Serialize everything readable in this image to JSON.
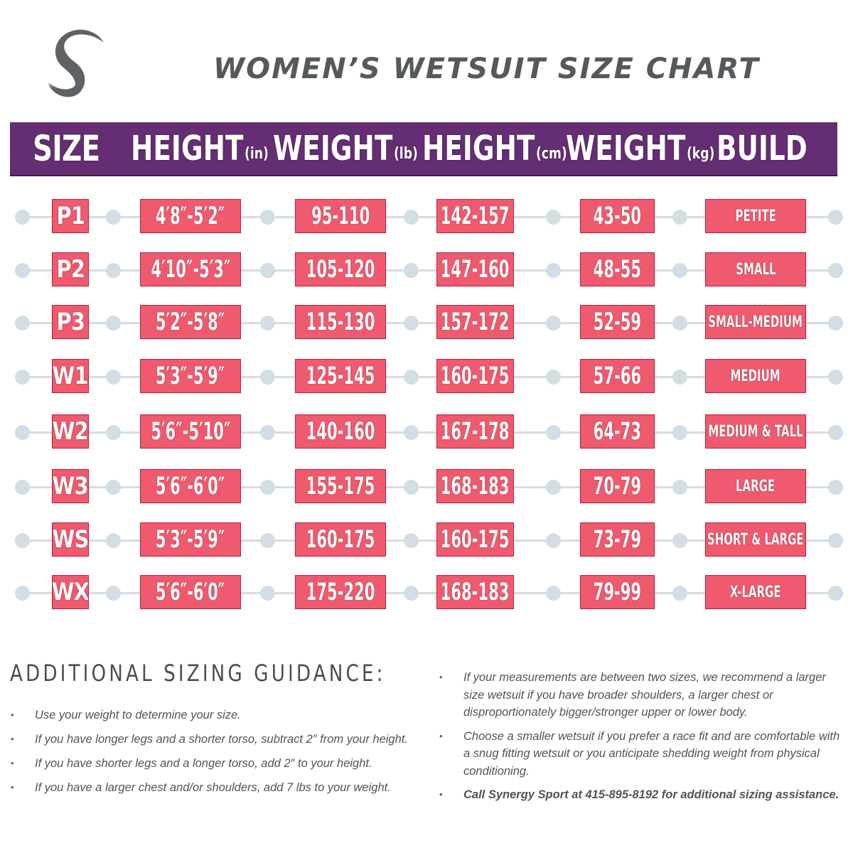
{
  "logo": {
    "icon": "synergy-s-logo-icon",
    "color": "#5e6265"
  },
  "title": "WOMEN’S WETSUIT SIZE CHART",
  "colors": {
    "header_bg": "#652e74",
    "box_fill": "#f05a6e",
    "box_border": "#b8203a",
    "connector": "#d3dde4",
    "text_gray": "#55595c"
  },
  "header": {
    "size": {
      "label": "SIZE",
      "unit": ""
    },
    "height_in": {
      "label": "HEIGHT",
      "unit": "(in)"
    },
    "weight_lb": {
      "label": "WEIGHT",
      "unit": "(lb)"
    },
    "height_cm": {
      "label": "HEIGHT",
      "unit": "(cm)"
    },
    "weight_kg": {
      "label": "WEIGHT",
      "unit": "(kg)"
    },
    "build": {
      "label": "BUILD",
      "unit": ""
    }
  },
  "rows": [
    {
      "size": "P1",
      "height_in": "4′8″-5′2″",
      "weight_lb": "95-110",
      "height_cm": "142-157",
      "weight_kg": "43-50",
      "build": "PETITE"
    },
    {
      "size": "P2",
      "height_in": "4′10″-5′3″",
      "weight_lb": "105-120",
      "height_cm": "147-160",
      "weight_kg": "48-55",
      "build": "SMALL"
    },
    {
      "size": "P3",
      "height_in": "5′2″-5′8″",
      "weight_lb": "115-130",
      "height_cm": "157-172",
      "weight_kg": "52-59",
      "build": "SMALL-MEDIUM"
    },
    {
      "size": "W1",
      "height_in": "5′3″-5′9″",
      "weight_lb": "125-145",
      "height_cm": "160-175",
      "weight_kg": "57-66",
      "build": "MEDIUM"
    },
    {
      "size": "W2",
      "height_in": "5′6″-5′10″",
      "weight_lb": "140-160",
      "height_cm": "167-178",
      "weight_kg": "64-73",
      "build": "MEDIUM & TALL"
    },
    {
      "size": "W3",
      "height_in": "5′6″-6′0″",
      "weight_lb": "155-175",
      "height_cm": "168-183",
      "weight_kg": "70-79",
      "build": "LARGE"
    },
    {
      "size": "WS",
      "height_in": "5′3″-5′9″",
      "weight_lb": "160-175",
      "height_cm": "160-175",
      "weight_kg": "73-79",
      "build": "SHORT & LARGE"
    },
    {
      "size": "WX",
      "height_in": "5′6″-6′0″",
      "weight_lb": "175-220",
      "height_cm": "168-183",
      "weight_kg": "79-99",
      "build": "X-LARGE"
    }
  ],
  "guidance": {
    "title": "ADDITIONAL SIZING GUIDANCE:",
    "left": [
      "Use your weight to determine your size.",
      "If you have longer legs and a shorter torso, subtract 2″ from your height.",
      "If you have shorter legs and a longer torso, add 2″ to your height.",
      "If you have a larger chest and/or shoulders, add 7 lbs to your weight."
    ],
    "right": [
      "If your measurements are between two sizes, we recommend a larger size wetsuit if you have broader shoulders, a larger chest or disproportionately bigger/stronger upper or lower body.",
      "Choose a smaller wetsuit if you prefer a race fit and are comfortable with a snug fitting wetsuit or you anticipate shedding weight from physical conditioning.",
      "Call Synergy Sport at 415-895-8192 for additional sizing assistance."
    ]
  },
  "chart_data": {
    "type": "table",
    "title": "WOMEN’S WETSUIT SIZE CHART",
    "columns": [
      "SIZE",
      "HEIGHT (in)",
      "WEIGHT (lb)",
      "HEIGHT (cm)",
      "WEIGHT (kg)",
      "BUILD"
    ],
    "rows": [
      [
        "P1",
        "4'8\"-5'2\"",
        "95-110",
        "142-157",
        "43-50",
        "PETITE"
      ],
      [
        "P2",
        "4'10\"-5'3\"",
        "105-120",
        "147-160",
        "48-55",
        "SMALL"
      ],
      [
        "P3",
        "5'2\"-5'8\"",
        "115-130",
        "157-172",
        "52-59",
        "SMALL-MEDIUM"
      ],
      [
        "W1",
        "5'3\"-5'9\"",
        "125-145",
        "160-175",
        "57-66",
        "MEDIUM"
      ],
      [
        "W2",
        "5'6\"-5'10\"",
        "140-160",
        "167-178",
        "64-73",
        "MEDIUM & TALL"
      ],
      [
        "W3",
        "5'6\"-6'0\"",
        "155-175",
        "168-183",
        "70-79",
        "LARGE"
      ],
      [
        "WS",
        "5'3\"-5'9\"",
        "160-175",
        "160-175",
        "73-79",
        "SHORT & LARGE"
      ],
      [
        "WX",
        "5'6\"-6'0\"",
        "175-220",
        "168-183",
        "79-99",
        "X-LARGE"
      ]
    ]
  }
}
